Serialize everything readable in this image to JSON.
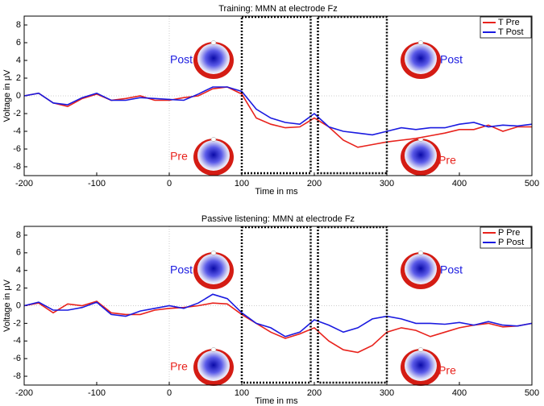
{
  "chart_data": [
    {
      "type": "line",
      "title": "Training: MMN at electrode Fz",
      "x_label": "Time in ms",
      "y_label": "Voltage in μV",
      "x": [
        -200,
        -180,
        -160,
        -140,
        -120,
        -100,
        -80,
        -60,
        -40,
        -20,
        0,
        20,
        40,
        60,
        80,
        100,
        120,
        140,
        160,
        180,
        200,
        220,
        240,
        260,
        280,
        300,
        320,
        340,
        360,
        380,
        400,
        420,
        440,
        460,
        480,
        500
      ],
      "series": [
        {
          "name": "T Pre",
          "color": "#e8221c",
          "values": [
            0,
            0.3,
            -0.8,
            -1.2,
            -0.3,
            0.2,
            -0.5,
            -0.3,
            0,
            -0.5,
            -0.5,
            -0.2,
            0,
            0.8,
            1,
            0.2,
            -2.5,
            -3.2,
            -3.6,
            -3.5,
            -2.5,
            -3.5,
            -5,
            -5.8,
            -5.5,
            -5.2,
            -5,
            -4.8,
            -4.5,
            -4.2,
            -3.8,
            -3.8,
            -3.3,
            -4,
            -3.5,
            -3.5
          ]
        },
        {
          "name": "T Post",
          "color": "#1a1ae0",
          "values": [
            0,
            0.3,
            -0.8,
            -1,
            -0.2,
            0.3,
            -0.5,
            -0.5,
            -0.2,
            -0.3,
            -0.4,
            -0.5,
            0.2,
            1,
            1,
            0.5,
            -1.5,
            -2.5,
            -3,
            -3.2,
            -2,
            -3.5,
            -4,
            -4.2,
            -4.4,
            -4,
            -3.6,
            -3.8,
            -3.6,
            -3.6,
            -3.2,
            -3,
            -3.5,
            -3.3,
            -3.4,
            -3.2
          ]
        }
      ],
      "xlim": [
        -200,
        500
      ],
      "ylim": [
        -9,
        9
      ],
      "xticks": [
        -200,
        -100,
        0,
        100,
        200,
        300,
        400,
        500
      ],
      "yticks": [
        -8,
        -6,
        -4,
        -2,
        0,
        2,
        4,
        6,
        8
      ],
      "windows": [
        [
          100,
          195
        ],
        [
          205,
          300
        ]
      ],
      "legend": "upper right",
      "annotations": [
        {
          "text": "Post",
          "color": "#1a1ae0"
        },
        {
          "text": "Pre",
          "color": "#e8221c"
        },
        {
          "text": "Post",
          "color": "#1a1ae0"
        },
        {
          "text": "Pre",
          "color": "#e8221c"
        }
      ]
    },
    {
      "type": "line",
      "title": "Passive listening: MMN at electrode Fz",
      "x_label": "Time in ms",
      "y_label": "Voltage in μV",
      "x": [
        -200,
        -180,
        -160,
        -140,
        -120,
        -100,
        -80,
        -60,
        -40,
        -20,
        0,
        20,
        40,
        60,
        80,
        100,
        120,
        140,
        160,
        180,
        200,
        220,
        240,
        260,
        280,
        300,
        320,
        340,
        360,
        380,
        400,
        420,
        440,
        460,
        480,
        500
      ],
      "series": [
        {
          "name": "P Pre",
          "color": "#e8221c",
          "values": [
            0,
            0.3,
            -0.8,
            0.2,
            0,
            0.5,
            -0.8,
            -1,
            -1,
            -0.5,
            -0.3,
            -0.2,
            0,
            0.3,
            0.2,
            -1,
            -2,
            -3,
            -3.7,
            -3.2,
            -2.5,
            -4,
            -5,
            -5.3,
            -4.5,
            -3,
            -2.5,
            -2.8,
            -3.5,
            -3,
            -2.5,
            -2.2,
            -2,
            -2.4,
            -2.3,
            -2
          ]
        },
        {
          "name": "P Post",
          "color": "#1a1ae0",
          "values": [
            0,
            0.4,
            -0.5,
            -0.5,
            -0.2,
            0.4,
            -1,
            -1.2,
            -0.6,
            -0.3,
            0,
            -0.3,
            0.3,
            1.3,
            0.8,
            -0.8,
            -2,
            -2.5,
            -3.5,
            -3,
            -1.6,
            -2.2,
            -3,
            -2.5,
            -1.5,
            -1.2,
            -1.5,
            -2,
            -2,
            -2.1,
            -1.9,
            -2.2,
            -1.8,
            -2.2,
            -2.3,
            -2
          ]
        }
      ],
      "xlim": [
        -200,
        500
      ],
      "ylim": [
        -9,
        9
      ],
      "xticks": [
        -200,
        -100,
        0,
        100,
        200,
        300,
        400,
        500
      ],
      "yticks": [
        -8,
        -6,
        -4,
        -2,
        0,
        2,
        4,
        6,
        8
      ],
      "windows": [
        [
          100,
          195
        ],
        [
          205,
          300
        ]
      ],
      "legend": "upper right",
      "annotations": [
        {
          "text": "Post",
          "color": "#1a1ae0"
        },
        {
          "text": "Pre",
          "color": "#e8221c"
        },
        {
          "text": "Post",
          "color": "#1a1ae0"
        },
        {
          "text": "Pre",
          "color": "#e8221c"
        }
      ]
    }
  ]
}
